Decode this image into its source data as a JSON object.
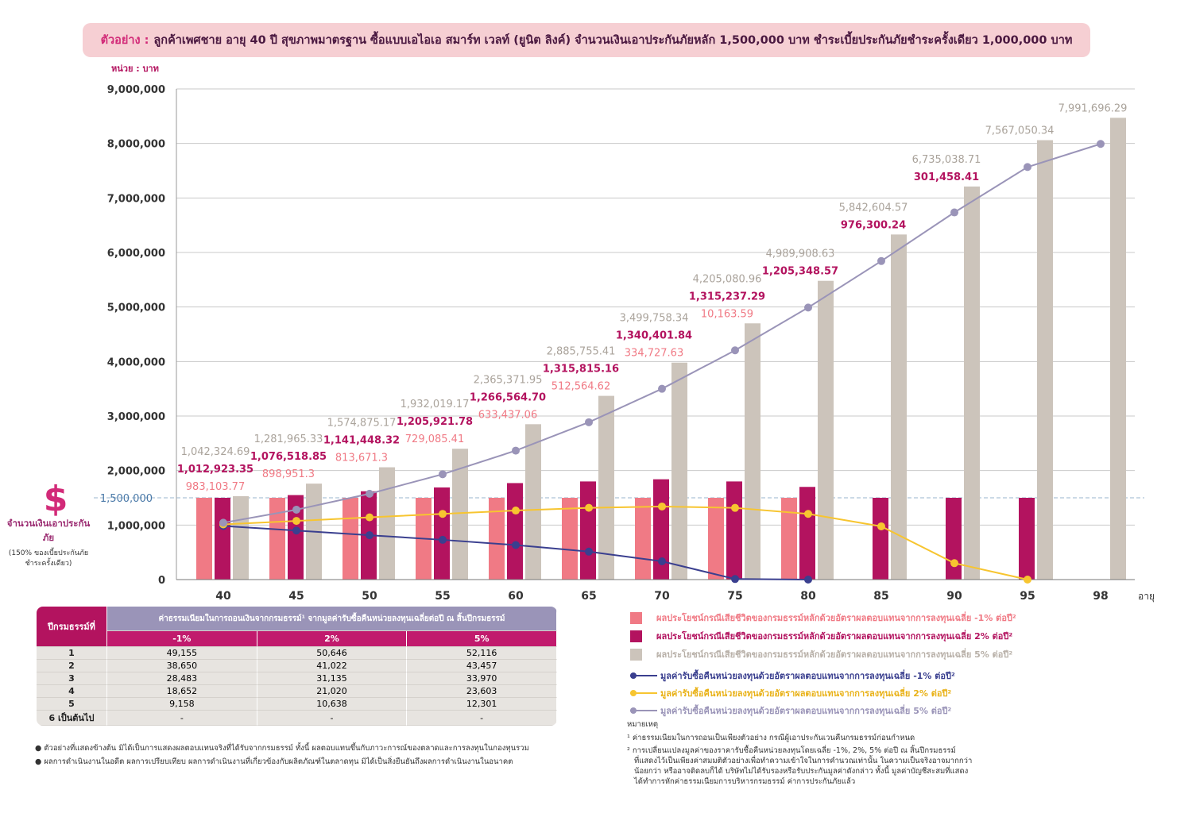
{
  "banner": {
    "lead": "ตัวอย่าง :",
    "text": "ลูกค้าเพศชาย อายุ 40 ปี สุขภาพมาตรฐาน ซื้อแบบเอไอเอ สมาร์ท เวลท์ (ยูนิต ลิงค์) จำนวนเงินเอาประกันภัยหลัก 1,500,000 บาท ชำระเบี้ยประกันภัยชำระครั้งเดียว 1,000,000 บาท"
  },
  "colors": {
    "bar_minus1": "#f07a85",
    "bar_2": "#b3135f",
    "bar_5": "#ccc4bb",
    "line_minus1": "#3a3f8f",
    "line_2": "#f7c530",
    "line_5": "#9a94b8",
    "accent": "#d22a78"
  },
  "sum_assured": {
    "value": 1500000,
    "label": "1,500,000",
    "icon": "dollar-icon",
    "title": "จำนวนเงินเอาประกันภัย",
    "subtitle": "(150% ของเบี้ยประกันภัย ชำระครั้งเดียว)"
  },
  "chart_data": {
    "type": "bar",
    "unit_label": "หน่วย : บาท",
    "xlabel": "อายุ",
    "categories": [
      "40",
      "45",
      "50",
      "55",
      "60",
      "65",
      "70",
      "75",
      "80",
      "85",
      "90",
      "95",
      "98"
    ],
    "ylim": [
      0,
      9000000
    ],
    "yticks": [
      "0",
      "1,000,000",
      "2,000,000",
      "3,000,000",
      "4,000,000",
      "5,000,000",
      "6,000,000",
      "7,000,000",
      "8,000,000",
      "9,000,000"
    ],
    "grid": true,
    "series": [
      {
        "name": "ผลประโยชน์กรณีเสียชีวิตของกรมธรรม์หลักด้วยอัตราผลตอบแทนจากการลงทุนเฉลี่ย -1% ต่อปี²",
        "kind": "bar",
        "values": [
          1500000,
          1500000,
          1500000,
          1500000,
          1500000,
          1500000,
          1500000,
          1500000,
          1500000,
          null,
          null,
          null,
          null
        ]
      },
      {
        "name": "ผลประโยชน์กรณีเสียชีวิตของกรมธรรม์หลักด้วยอัตราผลตอบแทนจากการลงทุนเฉลี่ย 2% ต่อปี²",
        "kind": "bar",
        "values": [
          1500000,
          1550000,
          1620000,
          1690000,
          1770000,
          1800000,
          1840000,
          1800000,
          1700000,
          1500000,
          1500000,
          1500000,
          null
        ]
      },
      {
        "name": "ผลประโยชน์กรณีเสียชีวิตของกรมธรรม์หลักด้วยอัตราผลตอบแทนจากการลงทุนเฉลี่ย 5% ต่อปี²",
        "kind": "bar",
        "values": [
          1530000,
          1760000,
          2060000,
          2400000,
          2850000,
          3370000,
          3980000,
          4700000,
          5480000,
          6330000,
          7210000,
          8060000,
          8470000
        ]
      },
      {
        "name": "มูลค่ารับซื้อคืนหน่วยลงทุนด้วยอัตราผลตอบแทนจากการลงทุนเฉลี่ย -1% ต่อปี²",
        "kind": "line",
        "values": [
          983103.77,
          898951.3,
          813671.3,
          729085.41,
          633437.06,
          512564.62,
          334727.63,
          10163.59,
          0,
          null,
          null,
          null,
          null
        ]
      },
      {
        "name": "มูลค่ารับซื้อคืนหน่วยลงทุนด้วยอัตราผลตอบแทนจากการลงทุนเฉลี่ย 2% ต่อปี²",
        "kind": "line",
        "values": [
          1012923.35,
          1076518.85,
          1141448.32,
          1205921.78,
          1266564.7,
          1315815.16,
          1340401.84,
          1315237.29,
          1205348.57,
          976300.24,
          301458.41,
          0,
          null
        ]
      },
      {
        "name": "มูลค่ารับซื้อคืนหน่วยลงทุนด้วยอัตราผลตอบแทนจากการลงทุนเฉลี่ย 5% ต่อปี²",
        "kind": "line",
        "values": [
          1042324.69,
          1281965.33,
          1574875.17,
          1932019.17,
          2365371.95,
          2885755.41,
          3499758.34,
          4205080.96,
          4989908.63,
          5842604.57,
          6735038.71,
          7567050.34,
          7991696.29
        ]
      }
    ],
    "annotations": [
      {
        "cat": "40",
        "labels": [
          "1,042,324.69",
          "1,012,923.35",
          "983,103.77"
        ]
      },
      {
        "cat": "45",
        "labels": [
          "1,281,965.33",
          "1,076,518.85",
          "898,951.3"
        ]
      },
      {
        "cat": "50",
        "labels": [
          "1,574,875.17",
          "1,141,448.32",
          "813,671.3"
        ]
      },
      {
        "cat": "55",
        "labels": [
          "1,932,019.17",
          "1,205,921.78",
          "729,085.41"
        ]
      },
      {
        "cat": "60",
        "labels": [
          "2,365,371.95",
          "1,266,564.70",
          "633,437.06"
        ]
      },
      {
        "cat": "65",
        "labels": [
          "2,885,755.41",
          "1,315,815.16",
          "512,564.62"
        ]
      },
      {
        "cat": "70",
        "labels": [
          "3,499,758.34",
          "1,340,401.84",
          "334,727.63"
        ]
      },
      {
        "cat": "75",
        "labels": [
          "4,205,080.96",
          "1,315,237.29",
          "10,163.59"
        ]
      },
      {
        "cat": "80",
        "labels": [
          "4,989,908.63",
          "1,205,348.57"
        ]
      },
      {
        "cat": "85",
        "labels": [
          "5,842,604.57",
          "976,300.24"
        ]
      },
      {
        "cat": "90",
        "labels": [
          "6,735,038.71",
          "301,458.41"
        ]
      },
      {
        "cat": "95",
        "labels": [
          "7,567,050.34"
        ]
      },
      {
        "cat": "98",
        "labels": [
          "7,991,696.29"
        ]
      }
    ]
  },
  "fee_table": {
    "year_header": "ปีกรมธรรม์ที่",
    "top_header": "ค่าธรรมเนียมในการถอนเงินจากกรมธรรม์¹ จากมูลค่ารับซื้อคืนหน่วยลงทุนเฉลี่ยต่อปี ณ สิ้นปีกรมธรรม์",
    "columns": [
      "-1%",
      "2%",
      "5%"
    ],
    "rows": [
      {
        "year": "1",
        "values": [
          "49,155",
          "50,646",
          "52,116"
        ]
      },
      {
        "year": "2",
        "values": [
          "38,650",
          "41,022",
          "43,457"
        ]
      },
      {
        "year": "3",
        "values": [
          "28,483",
          "31,135",
          "33,970"
        ]
      },
      {
        "year": "4",
        "values": [
          "18,652",
          "21,020",
          "23,603"
        ]
      },
      {
        "year": "5",
        "values": [
          "9,158",
          "10,638",
          "12,301"
        ]
      },
      {
        "year": "6 เป็นต้นไป",
        "values": [
          "-",
          "-",
          "-"
        ]
      }
    ]
  },
  "notes_left": [
    "ตัวอย่างที่แสดงข้างต้น มิได้เป็นการแสดงผลตอบแทนจริงที่ได้รับจากกรมธรรม์ ทั้งนี้ ผลตอบแทนขึ้นกับภาวะการณ์ของตลาดและการลงทุนในกองทุนรวม",
    "ผลการดำเนินงานในอดีต ผลการเปรียบเทียบ ผลการดำเนินงานที่เกี่ยวข้องกับผลิตภัณฑ์ในตลาดทุน มิได้เป็นสิ่งยืนยันถึงผลการดำเนินงานในอนาคต"
  ],
  "notes_right": {
    "title": "หมายเหตุ",
    "note1": "¹ ค่าธรรมเนียมในการถอนเป็นเพียงตัวอย่าง กรณีผู้เอาประกันเวนคืนกรมธรรม์ก่อนกำหนด",
    "note2a": "² การเปลี่ยนแปลงมูลค่าของราคารับซื้อคืนหน่วยลงทุนโดยเฉลี่ย -1%, 2%, 5% ต่อปี ณ สิ้นปีกรมธรรม์",
    "note2b": "ที่แสดงไว้เป็นเพียงค่าสมมติตัวอย่างเพื่อทำความเข้าใจในการคำนวณเท่านั้น ในความเป็นจริงอาจมากกว่า",
    "note2c": "น้อยกว่า หรืออาจติดลบก็ได้ บริษัทไม่ได้รับรองหรือรับประกันมูลค่าดังกล่าว ทั้งนี้ มูลค่าบัญชีสะสมที่แสดง",
    "note2d": "ได้ทำการหักค่าธรรมเนียมการบริหารกรมธรรม์ ค่าการประกันภัยแล้ว"
  }
}
